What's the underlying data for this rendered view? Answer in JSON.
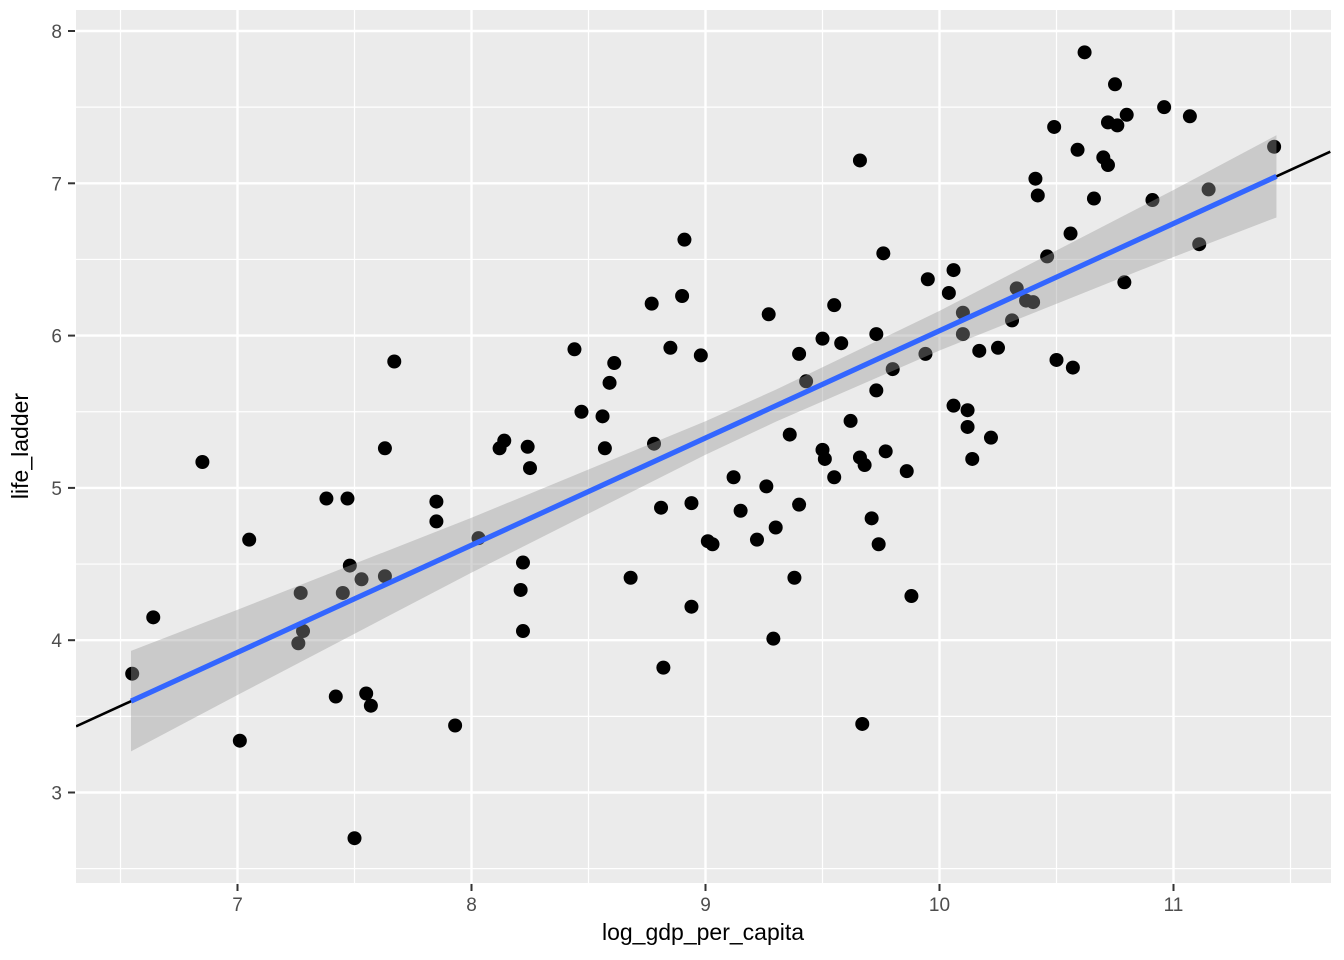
{
  "chart_data": {
    "type": "scatter",
    "title": "",
    "xlabel": "log_gdp_per_capita",
    "ylabel": "life_ladder",
    "xlim": [
      6.31,
      11.67
    ],
    "ylim": [
      2.41,
      8.14
    ],
    "x_ticks": [
      7,
      8,
      9,
      10,
      11
    ],
    "y_ticks": [
      3,
      4,
      5,
      6,
      7,
      8
    ],
    "x_minor_ticks": [
      6.5,
      7.5,
      8.5,
      9.5,
      10.5,
      11.5
    ],
    "y_minor_ticks": [
      2.5,
      3.5,
      4.5,
      5.5,
      6.5,
      7.5
    ],
    "grid": true,
    "legend": "none",
    "points": [
      [
        6.55,
        3.78
      ],
      [
        6.64,
        4.15
      ],
      [
        6.85,
        5.17
      ],
      [
        7.01,
        3.34
      ],
      [
        7.05,
        4.66
      ],
      [
        7.26,
        3.98
      ],
      [
        7.28,
        4.06
      ],
      [
        7.27,
        4.31
      ],
      [
        7.45,
        4.31
      ],
      [
        7.38,
        4.93
      ],
      [
        7.42,
        3.63
      ],
      [
        7.47,
        4.93
      ],
      [
        7.48,
        4.49
      ],
      [
        7.5,
        2.7
      ],
      [
        7.53,
        4.4
      ],
      [
        7.55,
        3.65
      ],
      [
        7.57,
        3.57
      ],
      [
        7.63,
        4.42
      ],
      [
        7.63,
        5.26
      ],
      [
        7.67,
        5.83
      ],
      [
        7.85,
        4.91
      ],
      [
        7.85,
        4.78
      ],
      [
        7.93,
        3.44
      ],
      [
        8.03,
        4.67
      ],
      [
        8.12,
        5.26
      ],
      [
        8.14,
        5.31
      ],
      [
        8.21,
        4.33
      ],
      [
        8.22,
        4.51
      ],
      [
        8.22,
        4.06
      ],
      [
        8.24,
        5.27
      ],
      [
        8.25,
        5.13
      ],
      [
        8.44,
        5.91
      ],
      [
        8.47,
        5.5
      ],
      [
        8.56,
        5.47
      ],
      [
        8.57,
        5.26
      ],
      [
        8.59,
        5.69
      ],
      [
        8.61,
        5.82
      ],
      [
        8.68,
        4.41
      ],
      [
        8.77,
        6.21
      ],
      [
        8.78,
        5.29
      ],
      [
        8.81,
        4.87
      ],
      [
        8.82,
        3.82
      ],
      [
        8.85,
        5.92
      ],
      [
        8.9,
        6.26
      ],
      [
        8.91,
        6.63
      ],
      [
        8.94,
        4.9
      ],
      [
        8.94,
        4.22
      ],
      [
        8.98,
        5.87
      ],
      [
        9.01,
        4.65
      ],
      [
        9.03,
        4.63
      ],
      [
        9.12,
        5.07
      ],
      [
        9.15,
        4.85
      ],
      [
        9.22,
        4.66
      ],
      [
        9.26,
        5.01
      ],
      [
        9.27,
        6.14
      ],
      [
        9.29,
        4.01
      ],
      [
        9.3,
        4.74
      ],
      [
        9.36,
        5.35
      ],
      [
        9.38,
        4.41
      ],
      [
        9.4,
        5.88
      ],
      [
        9.4,
        4.89
      ],
      [
        9.43,
        5.7
      ],
      [
        9.5,
        5.98
      ],
      [
        9.5,
        5.25
      ],
      [
        9.51,
        5.19
      ],
      [
        9.55,
        6.2
      ],
      [
        9.55,
        5.07
      ],
      [
        9.58,
        5.95
      ],
      [
        9.62,
        5.44
      ],
      [
        9.66,
        7.15
      ],
      [
        9.66,
        5.2
      ],
      [
        9.67,
        3.45
      ],
      [
        9.68,
        5.15
      ],
      [
        9.71,
        4.8
      ],
      [
        9.73,
        6.01
      ],
      [
        9.73,
        5.64
      ],
      [
        9.74,
        4.63
      ],
      [
        9.76,
        6.54
      ],
      [
        9.77,
        5.24
      ],
      [
        9.8,
        5.78
      ],
      [
        9.86,
        5.11
      ],
      [
        9.88,
        4.29
      ],
      [
        9.94,
        5.88
      ],
      [
        9.95,
        6.37
      ],
      [
        10.04,
        6.28
      ],
      [
        10.06,
        6.43
      ],
      [
        10.06,
        5.54
      ],
      [
        10.1,
        6.15
      ],
      [
        10.1,
        6.01
      ],
      [
        10.12,
        5.51
      ],
      [
        10.12,
        5.4
      ],
      [
        10.14,
        5.19
      ],
      [
        10.17,
        5.9
      ],
      [
        10.22,
        5.33
      ],
      [
        10.25,
        5.92
      ],
      [
        10.31,
        6.1
      ],
      [
        10.33,
        6.31
      ],
      [
        10.37,
        6.23
      ],
      [
        10.4,
        6.22
      ],
      [
        10.41,
        7.03
      ],
      [
        10.42,
        6.92
      ],
      [
        10.46,
        6.52
      ],
      [
        10.49,
        7.37
      ],
      [
        10.5,
        5.84
      ],
      [
        10.56,
        6.67
      ],
      [
        10.57,
        5.79
      ],
      [
        10.59,
        7.22
      ],
      [
        10.62,
        7.86
      ],
      [
        10.66,
        6.9
      ],
      [
        10.7,
        7.17
      ],
      [
        10.72,
        7.4
      ],
      [
        10.72,
        7.12
      ],
      [
        10.75,
        7.65
      ],
      [
        10.76,
        7.38
      ],
      [
        10.79,
        6.35
      ],
      [
        10.8,
        7.45
      ],
      [
        10.91,
        6.89
      ],
      [
        10.96,
        7.5
      ],
      [
        11.07,
        7.44
      ],
      [
        11.11,
        6.6
      ],
      [
        11.15,
        6.96
      ],
      [
        11.43,
        7.24
      ]
    ],
    "regression": {
      "slope": 0.704,
      "intercept": -1.008,
      "abline_x_range": [
        6.31,
        11.67
      ],
      "smooth_x_range": [
        6.545,
        11.44
      ],
      "ci_band": {
        "x": [
          6.545,
          7.0,
          8.0,
          9.0,
          9.3,
          10.0,
          11.0,
          11.44
        ],
        "half_width": [
          0.33,
          0.28,
          0.18,
          0.11,
          0.105,
          0.13,
          0.22,
          0.27
        ]
      }
    },
    "colors": {
      "panel_bg": "#EBEBEB",
      "grid": "#FFFFFF",
      "point": "#000000",
      "smooth_line": "#3366FF",
      "abline": "#000000",
      "ci_fill": "#999999",
      "ci_opacity": 0.4,
      "tick_label": "#4D4D4D",
      "axis_title": "#000000",
      "tick_mark": "#333333"
    }
  }
}
